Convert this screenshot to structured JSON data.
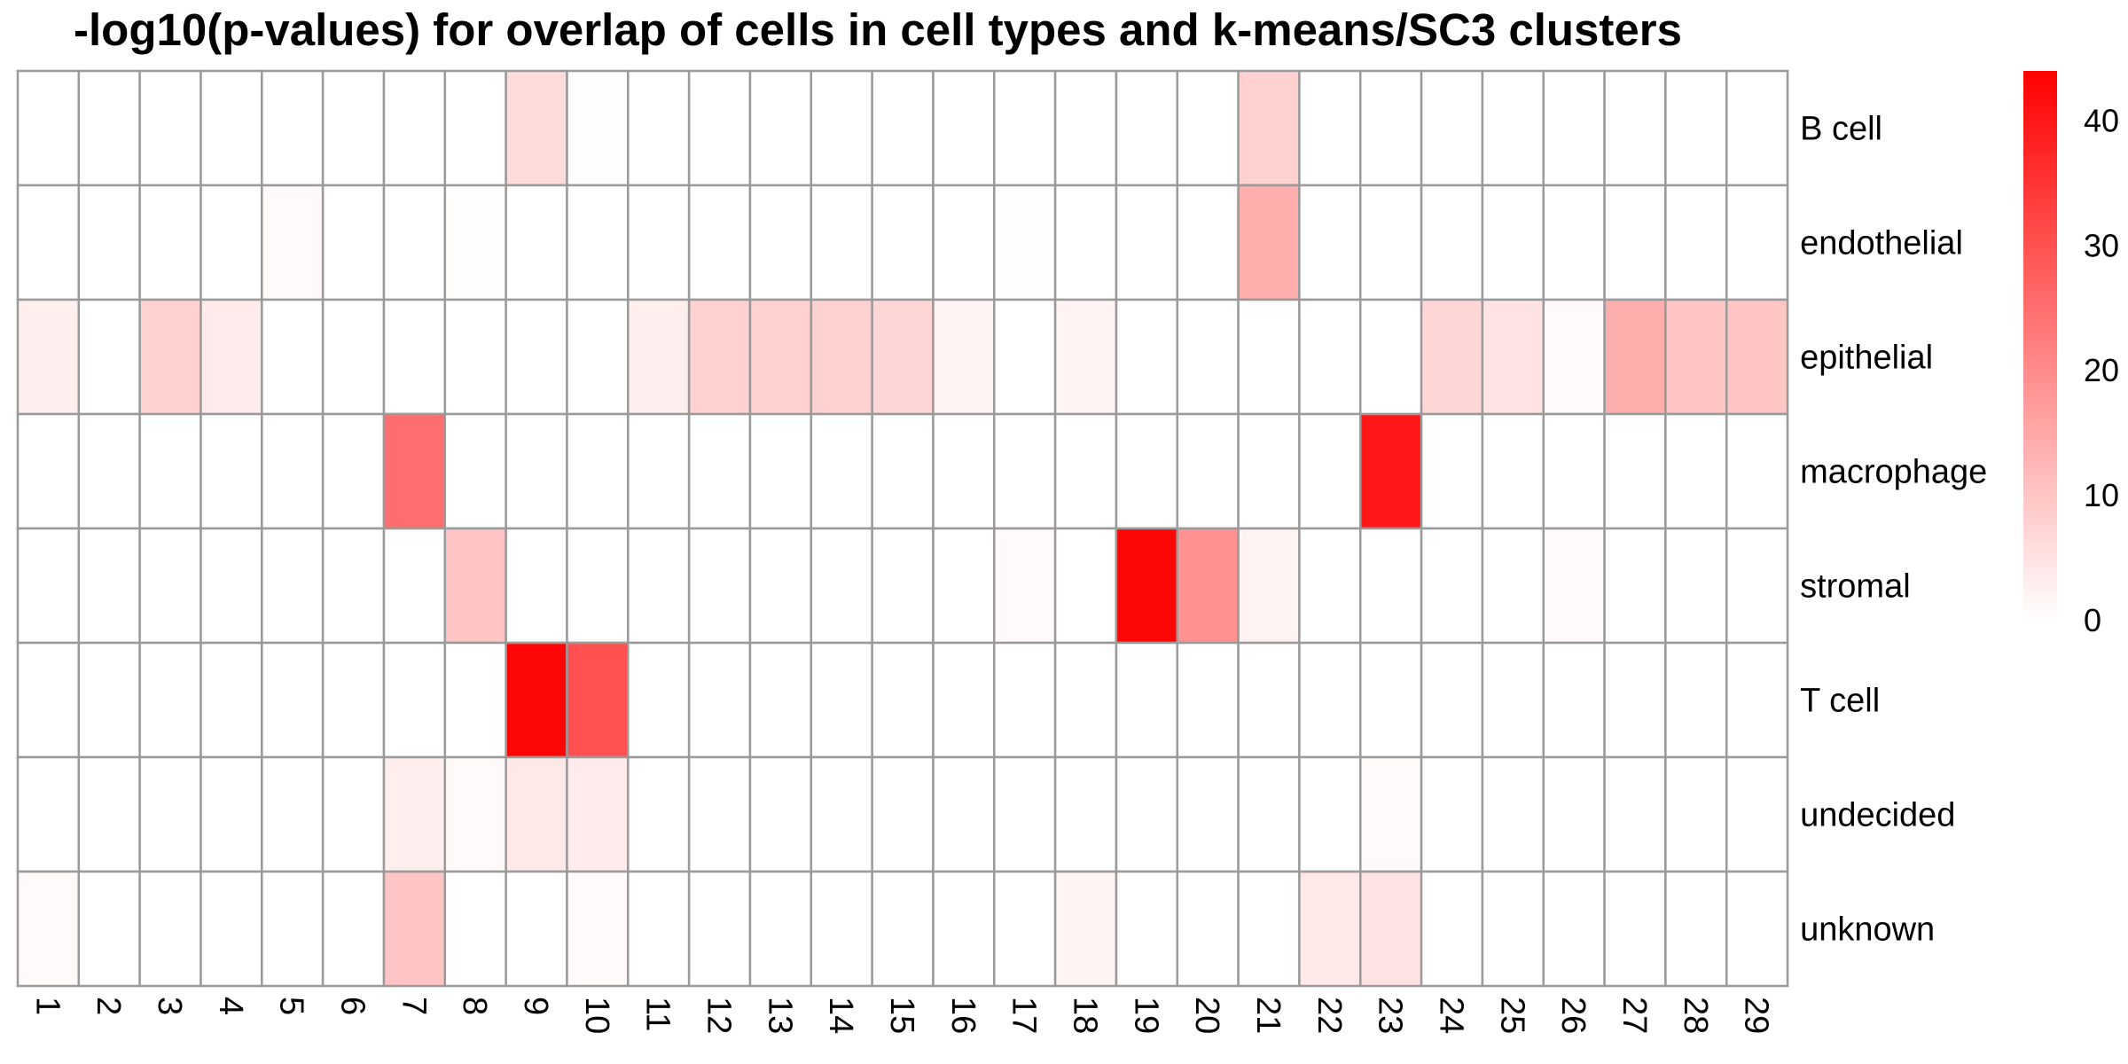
{
  "chart_data": {
    "type": "heatmap",
    "title": "-log10(p-values) for overlap of cells in cell types and k-means/SC3 clusters",
    "columns": [
      "1",
      "2",
      "3",
      "4",
      "5",
      "6",
      "7",
      "8",
      "9",
      "10",
      "11",
      "12",
      "13",
      "14",
      "15",
      "16",
      "17",
      "18",
      "19",
      "20",
      "21",
      "22",
      "23",
      "24",
      "25",
      "26",
      "27",
      "28",
      "29"
    ],
    "rows": [
      "B cell",
      "endothelial",
      "epithelial",
      "macrophage",
      "stromal",
      "T cell",
      "undecided",
      "unknown"
    ],
    "values": [
      [
        0,
        0,
        0,
        0,
        0,
        0,
        0,
        0,
        6,
        0.5,
        0,
        0,
        0,
        0,
        0,
        0,
        0,
        0,
        0,
        0,
        8,
        0,
        0,
        0,
        0,
        0,
        0,
        0,
        0
      ],
      [
        0,
        0,
        0,
        0,
        1,
        0,
        0,
        0.5,
        0,
        0,
        0,
        0,
        0,
        0,
        0,
        0,
        0.5,
        0,
        0,
        0,
        14,
        0,
        0,
        0,
        0,
        0,
        0,
        0,
        0
      ],
      [
        3,
        0,
        8,
        3.5,
        0,
        0,
        0,
        0,
        0,
        0,
        3,
        8,
        8,
        8,
        7,
        2,
        0,
        2,
        0,
        0,
        0,
        0,
        0,
        7,
        5,
        1,
        14,
        10,
        10
      ],
      [
        0,
        0,
        0,
        0,
        0,
        0,
        25,
        0,
        0,
        0,
        0,
        0,
        0,
        0,
        0,
        0,
        0,
        0,
        0,
        0,
        0,
        0,
        40,
        0,
        0,
        0,
        0,
        0,
        0
      ],
      [
        0,
        0,
        0,
        0,
        0,
        0,
        0,
        10,
        0,
        0,
        0,
        0,
        0,
        0,
        0,
        0,
        1,
        0,
        43,
        19,
        2,
        0,
        0,
        0,
        0,
        1,
        0,
        0,
        0
      ],
      [
        0,
        0,
        0,
        0,
        0,
        0,
        0,
        0,
        43,
        30,
        0,
        0,
        0,
        0,
        0,
        0,
        0,
        0,
        0,
        0,
        0,
        0,
        0,
        0,
        0,
        0,
        0,
        0,
        0
      ],
      [
        0,
        0,
        0,
        0,
        0,
        0,
        3,
        1,
        4,
        3.5,
        0,
        0,
        0,
        0,
        0,
        0,
        0,
        0,
        0,
        0,
        0,
        0,
        1,
        0,
        0,
        0,
        0,
        0,
        0
      ],
      [
        1,
        0,
        0,
        0,
        0,
        0,
        10,
        0,
        0,
        1,
        0,
        0,
        0,
        0,
        0,
        0,
        0,
        2,
        0,
        0,
        0,
        4,
        5,
        0,
        0,
        0,
        0,
        0,
        0
      ]
    ],
    "color_scale": {
      "low": "#ffffff",
      "high": "#ff0000",
      "min": 0,
      "max": 44
    },
    "legend": {
      "position": "right",
      "ticks": [
        0,
        10,
        20,
        30,
        40
      ]
    },
    "grid": true
  }
}
